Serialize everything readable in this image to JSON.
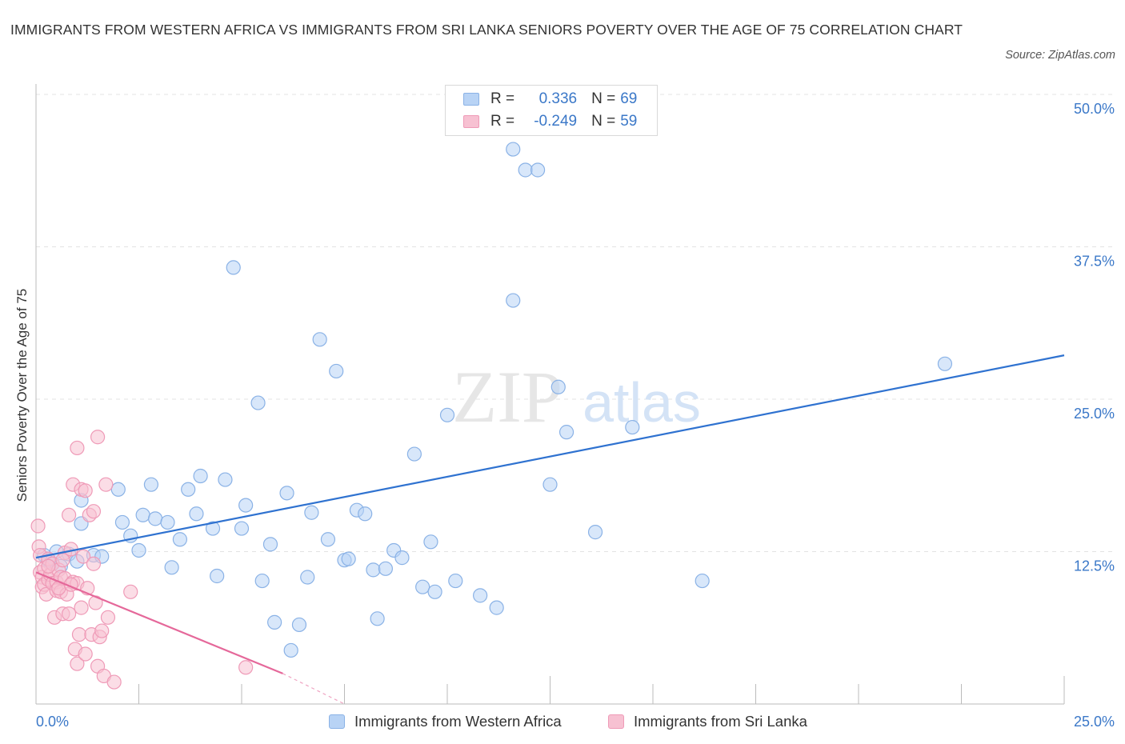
{
  "title": "IMMIGRANTS FROM WESTERN AFRICA VS IMMIGRANTS FROM SRI LANKA SENIORS POVERTY OVER THE AGE OF 75 CORRELATION CHART",
  "source": "Source: ZipAtlas.com",
  "watermark": {
    "zip": "ZIP",
    "atlas": "atlas"
  },
  "legend": {
    "r_label": "R =",
    "n_label": "N =",
    "rows": [
      {
        "r": "0.336",
        "n": "69"
      },
      {
        "r": "-0.249",
        "n": "59"
      }
    ]
  },
  "colors": {
    "blue_fill": "#b8d3f5",
    "blue_stroke": "#8ab2e6",
    "blue_line": "#2f72d0",
    "pink_fill": "#f7c1d2",
    "pink_stroke": "#ef9ab7",
    "pink_line": "#e5689a",
    "axis_text": "#3b78c8",
    "grid": "#e3e3e3"
  },
  "chart_data": {
    "type": "scatter",
    "title": "IMMIGRANTS FROM WESTERN AFRICA VS IMMIGRANTS FROM SRI LANKA SENIORS POVERTY OVER THE AGE OF 75 CORRELATION CHART",
    "xlabel": "",
    "ylabel": "Seniors Poverty Over the Age of 75",
    "xlim": [
      0,
      25
    ],
    "ylim": [
      0,
      50
    ],
    "x_tick_labels": [
      "0.0%",
      "25.0%"
    ],
    "y_tick_labels": [
      "12.5%",
      "25.0%",
      "37.5%",
      "50.0%"
    ],
    "y_ticks": [
      12.5,
      25,
      37.5,
      50
    ],
    "grid": true,
    "legend_position": "top-center",
    "series": [
      {
        "name": "Immigrants from Western Africa",
        "r": 0.336,
        "n": 69,
        "trend": {
          "x": [
            0,
            25
          ],
          "y": [
            12.0,
            28.6
          ]
        },
        "points": [
          [
            0.2,
            12.2
          ],
          [
            0.3,
            11.8
          ],
          [
            0.4,
            11.5
          ],
          [
            0.5,
            12.5
          ],
          [
            0.6,
            11.3
          ],
          [
            0.8,
            12.3
          ],
          [
            1.0,
            11.7
          ],
          [
            1.1,
            14.8
          ],
          [
            1.1,
            16.7
          ],
          [
            1.4,
            12.2
          ],
          [
            1.6,
            12.1
          ],
          [
            2.0,
            17.6
          ],
          [
            2.1,
            14.9
          ],
          [
            2.3,
            13.8
          ],
          [
            2.5,
            12.6
          ],
          [
            2.6,
            15.5
          ],
          [
            2.8,
            18.0
          ],
          [
            2.9,
            15.2
          ],
          [
            3.2,
            14.9
          ],
          [
            3.3,
            11.2
          ],
          [
            3.5,
            13.5
          ],
          [
            3.7,
            17.6
          ],
          [
            3.9,
            15.6
          ],
          [
            4.0,
            18.7
          ],
          [
            4.3,
            14.4
          ],
          [
            4.4,
            10.5
          ],
          [
            4.6,
            18.4
          ],
          [
            4.8,
            35.8
          ],
          [
            5.0,
            14.4
          ],
          [
            5.1,
            16.3
          ],
          [
            5.4,
            24.7
          ],
          [
            5.5,
            10.1
          ],
          [
            5.7,
            13.1
          ],
          [
            5.8,
            6.7
          ],
          [
            6.1,
            17.3
          ],
          [
            6.2,
            4.4
          ],
          [
            6.4,
            6.5
          ],
          [
            6.6,
            10.4
          ],
          [
            6.7,
            15.7
          ],
          [
            6.9,
            29.9
          ],
          [
            7.1,
            13.5
          ],
          [
            7.3,
            27.3
          ],
          [
            7.5,
            11.8
          ],
          [
            7.6,
            11.9
          ],
          [
            7.8,
            15.9
          ],
          [
            8.0,
            15.6
          ],
          [
            8.2,
            11.0
          ],
          [
            8.3,
            7.0
          ],
          [
            8.5,
            11.1
          ],
          [
            8.7,
            12.6
          ],
          [
            8.9,
            12.0
          ],
          [
            9.2,
            20.5
          ],
          [
            9.4,
            9.6
          ],
          [
            9.6,
            13.3
          ],
          [
            9.7,
            9.2
          ],
          [
            10.0,
            23.7
          ],
          [
            10.2,
            10.1
          ],
          [
            10.8,
            8.9
          ],
          [
            11.2,
            7.9
          ],
          [
            11.6,
            33.1
          ],
          [
            11.6,
            45.5
          ],
          [
            11.9,
            43.8
          ],
          [
            12.2,
            43.8
          ],
          [
            12.5,
            18.0
          ],
          [
            12.7,
            26.0
          ],
          [
            12.9,
            22.3
          ],
          [
            13.6,
            14.1
          ],
          [
            14.5,
            22.7
          ],
          [
            16.2,
            10.1
          ],
          [
            22.1,
            27.9
          ]
        ]
      },
      {
        "name": "Immigrants from Sri Lanka",
        "r": -0.249,
        "n": 59,
        "trend": {
          "x": [
            0,
            6.0
          ],
          "y": [
            10.8,
            2.5
          ]
        },
        "trend_dashed": {
          "x": [
            6.0,
            7.5
          ],
          "y": [
            2.5,
            0.0
          ]
        },
        "points": [
          [
            0.05,
            14.6
          ],
          [
            0.07,
            12.9
          ],
          [
            0.1,
            12.2
          ],
          [
            0.1,
            10.8
          ],
          [
            0.15,
            10.4
          ],
          [
            0.15,
            9.6
          ],
          [
            0.2,
            11.1
          ],
          [
            0.2,
            9.8
          ],
          [
            0.25,
            9.0
          ],
          [
            0.3,
            11.9
          ],
          [
            0.3,
            10.2
          ],
          [
            0.35,
            10.6
          ],
          [
            0.4,
            9.9
          ],
          [
            0.4,
            11.5
          ],
          [
            0.45,
            7.1
          ],
          [
            0.5,
            10.0
          ],
          [
            0.5,
            9.3
          ],
          [
            0.55,
            11.0
          ],
          [
            0.6,
            10.4
          ],
          [
            0.6,
            9.2
          ],
          [
            0.65,
            7.4
          ],
          [
            0.7,
            12.4
          ],
          [
            0.7,
            10.3
          ],
          [
            0.75,
            9.0
          ],
          [
            0.8,
            15.5
          ],
          [
            0.8,
            7.4
          ],
          [
            0.85,
            12.7
          ],
          [
            0.9,
            18.0
          ],
          [
            0.9,
            10.0
          ],
          [
            0.95,
            4.5
          ],
          [
            1.0,
            21.0
          ],
          [
            1.0,
            9.9
          ],
          [
            1.0,
            3.3
          ],
          [
            1.05,
            5.7
          ],
          [
            1.1,
            17.6
          ],
          [
            1.1,
            7.9
          ],
          [
            1.15,
            12.1
          ],
          [
            1.2,
            17.5
          ],
          [
            1.2,
            4.1
          ],
          [
            1.25,
            9.5
          ],
          [
            1.3,
            15.5
          ],
          [
            1.35,
            5.7
          ],
          [
            1.4,
            15.8
          ],
          [
            1.4,
            11.5
          ],
          [
            1.45,
            8.3
          ],
          [
            1.5,
            21.9
          ],
          [
            1.5,
            3.1
          ],
          [
            1.55,
            5.5
          ],
          [
            1.6,
            6.0
          ],
          [
            1.65,
            2.3
          ],
          [
            1.7,
            18.0
          ],
          [
            1.75,
            7.1
          ],
          [
            1.9,
            1.8
          ],
          [
            2.3,
            9.2
          ],
          [
            5.1,
            3.0
          ],
          [
            0.3,
            11.3
          ],
          [
            0.55,
            9.5
          ],
          [
            0.65,
            11.8
          ],
          [
            0.85,
            9.8
          ]
        ]
      }
    ]
  }
}
